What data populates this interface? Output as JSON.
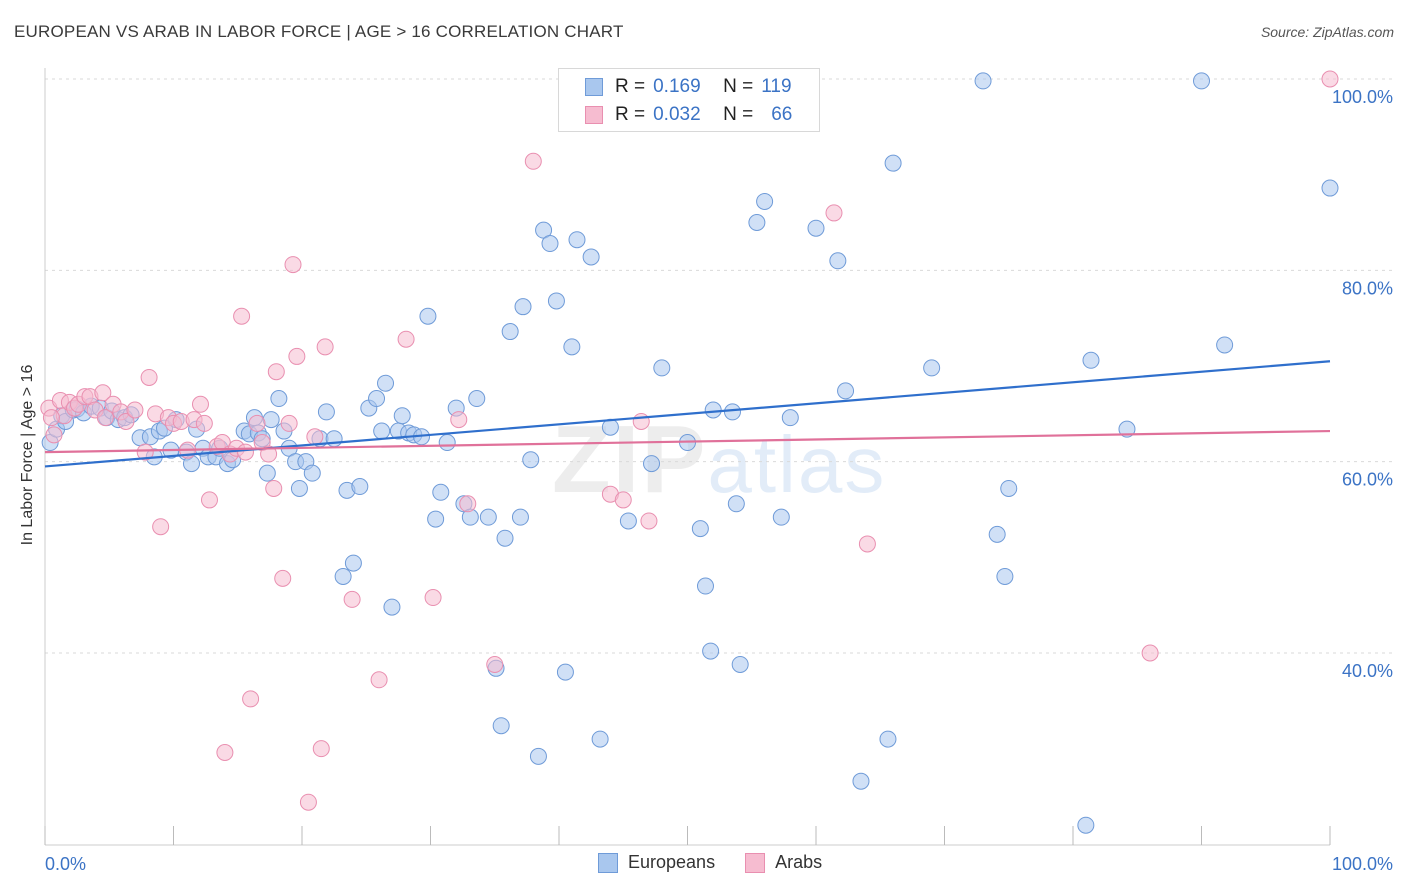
{
  "title": "EUROPEAN VS ARAB IN LABOR FORCE | AGE > 16 CORRELATION CHART",
  "source": "Source: ZipAtlas.com",
  "watermark": {
    "zip": "ZIP",
    "atlas": "atlas"
  },
  "legend": {
    "rows": [
      {
        "r_label": "R =",
        "r_value": "0.169",
        "n_label": "N =",
        "n_value": "119"
      },
      {
        "r_label": "R =",
        "r_value": "0.032",
        "n_label": "N =",
        "n_value": "66"
      }
    ]
  },
  "bottom_legend": [
    "Europeans",
    "Arabs"
  ],
  "colors": {
    "europeans_fill": "#a9c7ee",
    "europeans_stroke": "#6f9bd8",
    "europeans_line": "#2f6fcc",
    "arabs_fill": "#f6bcd0",
    "arabs_stroke": "#e98fb0",
    "arabs_line": "#e0719a",
    "axis_text": "#3b73c5",
    "grid": "#d9d9d9"
  },
  "chart_data": {
    "type": "scatter",
    "title": "EUROPEAN VS ARAB IN LABOR FORCE | AGE > 16 CORRELATION CHART",
    "xlabel": "",
    "ylabel": "In Labor Force | Age > 16",
    "xlim": [
      0,
      100
    ],
    "ylim": [
      20,
      102
    ],
    "x_tick_labels": [
      "0.0%",
      "100.0%"
    ],
    "y_ticks": [
      40,
      60,
      80,
      100
    ],
    "y_tick_labels": [
      "40.0%",
      "60.0%",
      "80.0%",
      "100.0%"
    ],
    "grid": true,
    "series": [
      {
        "name": "Europeans",
        "R": 0.169,
        "N": 119,
        "trend": {
          "x": [
            0,
            100
          ],
          "y": [
            59.5,
            70.5
          ]
        },
        "points": [
          [
            0.4,
            62
          ],
          [
            0.9,
            63.4
          ],
          [
            1.3,
            64.8
          ],
          [
            1.6,
            64.2
          ],
          [
            2.2,
            65.4
          ],
          [
            2.5,
            65.5
          ],
          [
            3.0,
            65.1
          ],
          [
            3.6,
            65.8
          ],
          [
            4.3,
            65.6
          ],
          [
            4.8,
            64.6
          ],
          [
            5.2,
            65.3
          ],
          [
            5.7,
            64.4
          ],
          [
            6.2,
            64.6
          ],
          [
            6.7,
            64.9
          ],
          [
            7.4,
            62.5
          ],
          [
            8.2,
            62.6
          ],
          [
            8.5,
            60.5
          ],
          [
            8.9,
            63.2
          ],
          [
            9.3,
            63.5
          ],
          [
            9.8,
            61.2
          ],
          [
            10.2,
            64.4
          ],
          [
            11.0,
            61.0
          ],
          [
            11.4,
            59.8
          ],
          [
            11.8,
            63.4
          ],
          [
            12.3,
            61.4
          ],
          [
            12.7,
            60.5
          ],
          [
            13.3,
            60.5
          ],
          [
            13.6,
            61.4
          ],
          [
            14.2,
            59.8
          ],
          [
            14.6,
            60.2
          ],
          [
            15.5,
            63.2
          ],
          [
            15.9,
            62.9
          ],
          [
            16.3,
            64.6
          ],
          [
            16.6,
            63.0
          ],
          [
            16.9,
            62.4
          ],
          [
            17.3,
            58.8
          ],
          [
            17.6,
            64.4
          ],
          [
            18.2,
            66.6
          ],
          [
            18.6,
            63.2
          ],
          [
            19.0,
            61.4
          ],
          [
            19.5,
            60.0
          ],
          [
            19.8,
            57.2
          ],
          [
            20.3,
            60.0
          ],
          [
            20.8,
            58.8
          ],
          [
            21.4,
            62.4
          ],
          [
            21.9,
            65.2
          ],
          [
            22.5,
            62.4
          ],
          [
            23.2,
            48.0
          ],
          [
            23.5,
            57.0
          ],
          [
            24.0,
            49.4
          ],
          [
            24.5,
            57.4
          ],
          [
            25.2,
            65.6
          ],
          [
            25.8,
            66.6
          ],
          [
            26.2,
            63.2
          ],
          [
            26.5,
            68.2
          ],
          [
            27.0,
            44.8
          ],
          [
            27.5,
            63.2
          ],
          [
            27.8,
            64.8
          ],
          [
            28.3,
            63.0
          ],
          [
            28.7,
            62.8
          ],
          [
            29.3,
            62.6
          ],
          [
            29.8,
            75.2
          ],
          [
            30.4,
            54.0
          ],
          [
            30.8,
            56.8
          ],
          [
            31.3,
            62.0
          ],
          [
            32.0,
            65.6
          ],
          [
            32.6,
            55.6
          ],
          [
            33.1,
            54.2
          ],
          [
            33.6,
            66.6
          ],
          [
            34.5,
            54.2
          ],
          [
            35.1,
            38.4
          ],
          [
            35.5,
            32.4
          ],
          [
            35.8,
            52.0
          ],
          [
            36.2,
            73.6
          ],
          [
            37.0,
            54.2
          ],
          [
            37.2,
            76.2
          ],
          [
            37.8,
            60.2
          ],
          [
            38.4,
            29.2
          ],
          [
            38.8,
            84.2
          ],
          [
            39.3,
            82.8
          ],
          [
            39.8,
            76.8
          ],
          [
            40.5,
            38.0
          ],
          [
            41.0,
            72.0
          ],
          [
            41.4,
            83.2
          ],
          [
            42.5,
            81.4
          ],
          [
            43.2,
            31.0
          ],
          [
            44.0,
            63.6
          ],
          [
            45.4,
            53.8
          ],
          [
            47.2,
            59.8
          ],
          [
            48.0,
            69.8
          ],
          [
            50.0,
            62.0
          ],
          [
            51.0,
            53.0
          ],
          [
            51.4,
            47.0
          ],
          [
            51.8,
            40.2
          ],
          [
            52.0,
            65.4
          ],
          [
            53.5,
            65.2
          ],
          [
            53.8,
            55.6
          ],
          [
            54.1,
            38.8
          ],
          [
            55.4,
            85.0
          ],
          [
            56.0,
            87.2
          ],
          [
            57.3,
            54.2
          ],
          [
            58.0,
            64.6
          ],
          [
            60.0,
            84.4
          ],
          [
            61.7,
            81.0
          ],
          [
            62.3,
            67.4
          ],
          [
            63.5,
            26.6
          ],
          [
            65.6,
            31.0
          ],
          [
            66.0,
            91.2
          ],
          [
            69.0,
            69.8
          ],
          [
            73.0,
            99.8
          ],
          [
            74.1,
            52.4
          ],
          [
            74.7,
            48.0
          ],
          [
            75.0,
            57.2
          ],
          [
            81.0,
            22.0
          ],
          [
            81.4,
            70.6
          ],
          [
            84.2,
            63.4
          ],
          [
            90.0,
            99.8
          ],
          [
            91.8,
            72.2
          ],
          [
            100.0,
            88.6
          ]
        ]
      },
      {
        "name": "Arabs",
        "R": 0.032,
        "N": 66,
        "trend": {
          "x": [
            0,
            100
          ],
          "y": [
            61.0,
            63.2
          ]
        },
        "points": [
          [
            0.3,
            65.6
          ],
          [
            0.7,
            62.8
          ],
          [
            1.2,
            66.4
          ],
          [
            1.5,
            64.8
          ],
          [
            1.9,
            66.2
          ],
          [
            2.3,
            65.6
          ],
          [
            2.6,
            66.0
          ],
          [
            3.1,
            66.8
          ],
          [
            3.5,
            66.8
          ],
          [
            3.9,
            65.4
          ],
          [
            4.5,
            67.2
          ],
          [
            4.7,
            64.6
          ],
          [
            5.3,
            66.0
          ],
          [
            5.9,
            65.2
          ],
          [
            6.3,
            64.2
          ],
          [
            7.0,
            65.4
          ],
          [
            7.8,
            61.0
          ],
          [
            8.1,
            68.8
          ],
          [
            8.6,
            65.0
          ],
          [
            9.0,
            53.2
          ],
          [
            9.6,
            64.6
          ],
          [
            10.0,
            64.0
          ],
          [
            10.6,
            64.2
          ],
          [
            11.1,
            61.2
          ],
          [
            11.6,
            64.4
          ],
          [
            12.1,
            66.0
          ],
          [
            12.4,
            64.0
          ],
          [
            12.8,
            56.0
          ],
          [
            13.4,
            61.6
          ],
          [
            13.8,
            62.0
          ],
          [
            14.0,
            29.6
          ],
          [
            14.4,
            60.8
          ],
          [
            14.9,
            61.4
          ],
          [
            15.3,
            75.2
          ],
          [
            15.6,
            61.0
          ],
          [
            16.0,
            35.2
          ],
          [
            16.5,
            64.0
          ],
          [
            16.9,
            62.0
          ],
          [
            17.4,
            60.8
          ],
          [
            17.8,
            57.2
          ],
          [
            18.0,
            69.4
          ],
          [
            18.5,
            47.8
          ],
          [
            19.0,
            64.0
          ],
          [
            19.3,
            80.6
          ],
          [
            19.6,
            71.0
          ],
          [
            20.5,
            24.4
          ],
          [
            21.0,
            62.6
          ],
          [
            21.5,
            30.0
          ],
          [
            21.8,
            72.0
          ],
          [
            23.9,
            45.6
          ],
          [
            26.0,
            37.2
          ],
          [
            28.1,
            72.8
          ],
          [
            30.2,
            45.8
          ],
          [
            32.2,
            64.4
          ],
          [
            32.9,
            55.6
          ],
          [
            35.0,
            38.8
          ],
          [
            38.0,
            91.4
          ],
          [
            44.0,
            56.6
          ],
          [
            45.0,
            56.0
          ],
          [
            46.4,
            64.2
          ],
          [
            47.0,
            53.8
          ],
          [
            61.4,
            86.0
          ],
          [
            64.0,
            51.4
          ],
          [
            86.0,
            40.0
          ],
          [
            100.0,
            100.0
          ],
          [
            0.5,
            64.6
          ]
        ]
      }
    ]
  }
}
